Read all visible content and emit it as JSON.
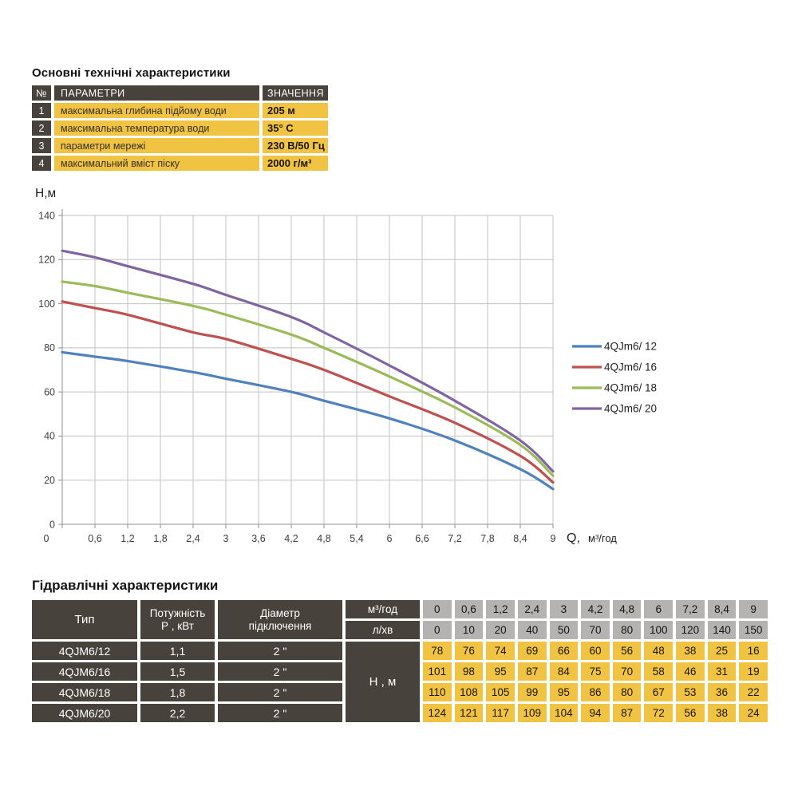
{
  "colors": {
    "dark_cell": "#48423c",
    "yellow_cell": "#f0c342",
    "gray_cell": "#b4b3b1",
    "grid_line": "#c2c2c2",
    "axis_line": "#8f8f8f",
    "tick_text": "#3d3d3d",
    "label_text": "#1f1f1f"
  },
  "tech_table": {
    "title": "Основні технічні характеристики",
    "headers": {
      "num": "№",
      "param": "ПАРАМЕТРИ",
      "value": "ЗНАЧЕННЯ"
    },
    "rows": [
      {
        "num": "1",
        "param": "максимальна глибина підйому води",
        "value": "205 м"
      },
      {
        "num": "2",
        "param": "максимальна температура води",
        "value": "35° С"
      },
      {
        "num": "3",
        "param": "параметри мережі",
        "value": "230 В/50 Гц"
      },
      {
        "num": "4",
        "param": "максимальний вміст піску",
        "value": "2000 г/м³"
      }
    ]
  },
  "chart_data": {
    "type": "line",
    "title": "",
    "ylabel": "Н,м",
    "xlabel_q": "Q,",
    "xlabel_units": "м³/год",
    "xlim": [
      0,
      9
    ],
    "ylim": [
      0,
      140
    ],
    "x_tick_step": 0.6,
    "y_tick_step": 20,
    "x_tick_labels": [
      "0",
      "0,6",
      "1,2",
      "1,8",
      "2,4",
      "3",
      "3,6",
      "4,2",
      "4,8",
      "5,4",
      "6",
      "6,6",
      "7,2",
      "7,8",
      "8,4",
      "9"
    ],
    "y_tick_labels": [
      "0",
      "20",
      "40",
      "60",
      "80",
      "100",
      "120",
      "140"
    ],
    "grid": true,
    "legend_position": "right",
    "x": [
      0,
      0.6,
      1.2,
      2.4,
      3,
      4.2,
      4.8,
      6,
      7.2,
      8.4,
      9
    ],
    "series": [
      {
        "name": "4QJm6/ 12",
        "color": "#4f81bd",
        "values": [
          78,
          76,
          74,
          69,
          66,
          60,
          56,
          48,
          38,
          25,
          16
        ]
      },
      {
        "name": "4QJm6/ 16",
        "color": "#c0504d",
        "values": [
          101,
          98,
          95,
          87,
          84,
          75,
          70,
          58,
          46,
          31,
          19
        ]
      },
      {
        "name": "4QJm6/ 18",
        "color": "#9bbb59",
        "values": [
          110,
          108,
          105,
          99,
          95,
          86,
          80,
          67,
          53,
          36,
          22
        ]
      },
      {
        "name": "4QJm6/ 20",
        "color": "#8064a2",
        "values": [
          124,
          121,
          117,
          109,
          104,
          94,
          87,
          72,
          56,
          38,
          24
        ]
      }
    ]
  },
  "hydraulic_table": {
    "title": "Гідравлічні характеристики",
    "col_headers": {
      "type": "Тип",
      "power_line1": "Потужність",
      "power_line2": "Р , кВт",
      "diameter_line1": "Діаметр",
      "diameter_line2": "підключення",
      "flow_m3": "м³/год",
      "flow_l": "л/хв",
      "head": "Н , м"
    },
    "flow_m3_values": [
      "0",
      "0,6",
      "1,2",
      "2,4",
      "3",
      "4,2",
      "4,8",
      "6",
      "7,2",
      "8,4",
      "9"
    ],
    "flow_l_values": [
      "0",
      "10",
      "20",
      "40",
      "50",
      "70",
      "80",
      "100",
      "120",
      "140",
      "150"
    ],
    "rows": [
      {
        "type": "4QJM6/12",
        "power": "1,1",
        "diameter": "2 \"",
        "heads": [
          "78",
          "76",
          "74",
          "69",
          "66",
          "60",
          "56",
          "48",
          "38",
          "25",
          "16"
        ]
      },
      {
        "type": "4QJM6/16",
        "power": "1,5",
        "diameter": "2 \"",
        "heads": [
          "101",
          "98",
          "95",
          "87",
          "84",
          "75",
          "70",
          "58",
          "46",
          "31",
          "19"
        ]
      },
      {
        "type": "4QJM6/18",
        "power": "1,8",
        "diameter": "2 \"",
        "heads": [
          "110",
          "108",
          "105",
          "99",
          "95",
          "86",
          "80",
          "67",
          "53",
          "36",
          "22"
        ]
      },
      {
        "type": "4QJM6/20",
        "power": "2,2",
        "diameter": "2 \"",
        "heads": [
          "124",
          "121",
          "117",
          "109",
          "104",
          "94",
          "87",
          "72",
          "56",
          "38",
          "24"
        ]
      }
    ]
  }
}
